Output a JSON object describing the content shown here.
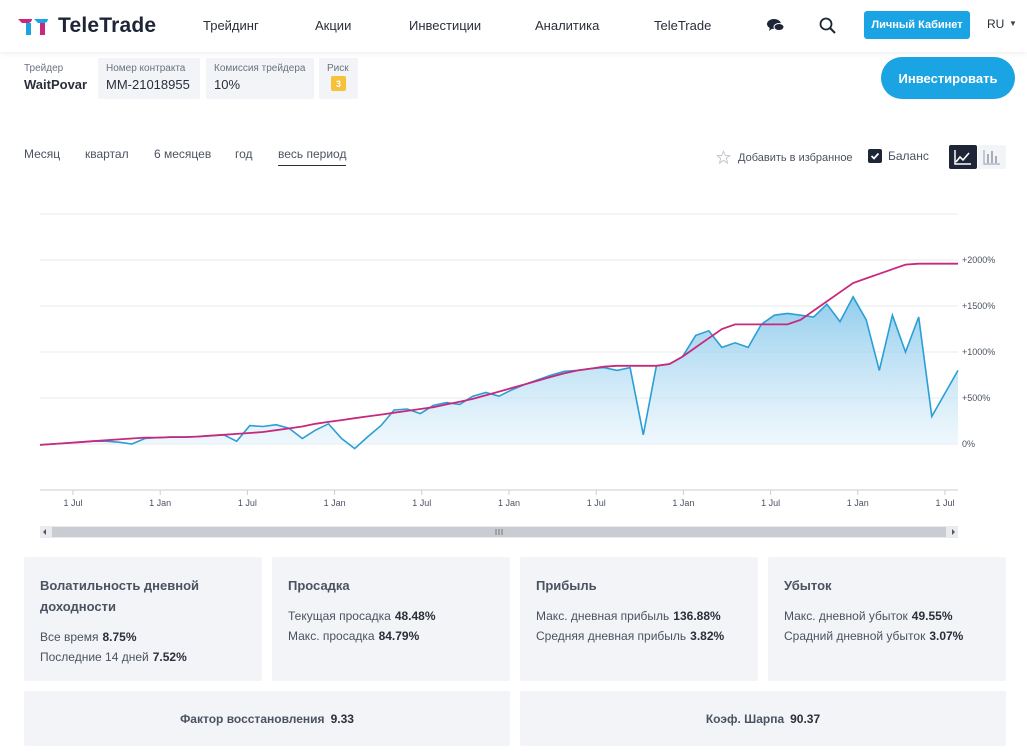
{
  "header": {
    "brand": "TeleTrade",
    "nav": [
      "Трейдинг",
      "Акции",
      "Инвестиции",
      "Аналитика",
      "TeleTrade"
    ],
    "cabinet_label": "Личный Кабинет",
    "lang": "RU",
    "icons": [
      "chat-icon",
      "search-icon",
      "caret-down-icon"
    ]
  },
  "info": {
    "trader_label": "Трейдер",
    "trader_value": "WaitPovar",
    "contract_label": "Номер контракта",
    "contract_value": "MM-21018955",
    "commission_label": "Комиссия трейдера",
    "commission_value": "10%",
    "risk_label": "Риск",
    "risk_value": "3",
    "invest_label": "Инвестировать"
  },
  "controls": {
    "periods": [
      "Месяц",
      "квартал",
      "6 месяцев",
      "год",
      "весь период"
    ],
    "active_period": "весь период",
    "favorite_label": "Добавить в избранное",
    "balance_label": "Баланс",
    "balance_checked": true
  },
  "colors": {
    "accent": "#1ba4e3",
    "balance_line": "#c8287d",
    "equity_line": "#2a9fd6",
    "dark": "#1d2537"
  },
  "chart_data": {
    "type": "area",
    "title": "",
    "xlabel": "",
    "ylabel": "",
    "y_unit": "%",
    "y_ticks": [
      "0%",
      "+500%",
      "+1000%",
      "+1500%",
      "+2000%"
    ],
    "y_tick_values": [
      0,
      500,
      1000,
      1500,
      2000
    ],
    "ylim": [
      -500,
      2500
    ],
    "x_ticks": [
      "1 Jul",
      "1 Jan",
      "1 Jul",
      "1 Jan",
      "1 Jul",
      "1 Jan",
      "1 Jul",
      "1 Jan",
      "1 Jul",
      "1 Jan",
      "1 Jul"
    ],
    "grid": true,
    "series": [
      {
        "name": "Баланс",
        "x": [
          0,
          1,
          2,
          3,
          4,
          5,
          6,
          7,
          8,
          9,
          10,
          11,
          12,
          13,
          14,
          15,
          16,
          17,
          18,
          19,
          20,
          21,
          22,
          23,
          24,
          25,
          26,
          27,
          28,
          29,
          30,
          31,
          32,
          33,
          34,
          35,
          36,
          37,
          38,
          39,
          40,
          41,
          42,
          43,
          44,
          45,
          46,
          47,
          48,
          49,
          50,
          51,
          52,
          53,
          54,
          55,
          56,
          57,
          58,
          59,
          60,
          61,
          62,
          63,
          64,
          65,
          66,
          67,
          68,
          69,
          70
        ],
        "values": [
          -10,
          0,
          10,
          20,
          30,
          40,
          50,
          60,
          70,
          70,
          75,
          75,
          80,
          90,
          100,
          110,
          120,
          130,
          150,
          170,
          190,
          220,
          240,
          260,
          280,
          300,
          320,
          340,
          360,
          380,
          400,
          430,
          460,
          490,
          530,
          570,
          610,
          650,
          690,
          730,
          770,
          800,
          820,
          840,
          850,
          850,
          850,
          850,
          870,
          950,
          1050,
          1150,
          1250,
          1300,
          1300,
          1300,
          1300,
          1300,
          1350,
          1450,
          1550,
          1650,
          1750,
          1800,
          1850,
          1900,
          1950,
          1960,
          1960,
          1960,
          1960
        ]
      },
      {
        "name": "",
        "x": [
          0,
          1,
          2,
          3,
          4,
          5,
          6,
          7,
          8,
          9,
          10,
          11,
          12,
          13,
          14,
          15,
          16,
          17,
          18,
          19,
          20,
          21,
          22,
          23,
          24,
          25,
          26,
          27,
          28,
          29,
          30,
          31,
          32,
          33,
          34,
          35,
          36,
          37,
          38,
          39,
          40,
          41,
          42,
          43,
          44,
          45,
          46,
          47,
          48,
          49,
          50,
          51,
          52,
          53,
          54,
          55,
          56,
          57,
          58,
          59,
          60,
          61,
          62,
          63,
          64,
          65,
          66,
          67,
          68,
          69,
          70
        ],
        "values": [
          -10,
          0,
          10,
          20,
          30,
          30,
          20,
          0,
          60,
          70,
          75,
          75,
          80,
          90,
          100,
          30,
          200,
          190,
          210,
          170,
          60,
          150,
          220,
          60,
          -50,
          80,
          200,
          370,
          380,
          330,
          420,
          450,
          430,
          520,
          560,
          520,
          590,
          650,
          700,
          750,
          790,
          800,
          820,
          830,
          800,
          830,
          100,
          850,
          870,
          950,
          1180,
          1230,
          1050,
          1100,
          1050,
          1300,
          1400,
          1420,
          1400,
          1380,
          1520,
          1330,
          1600,
          1350,
          800,
          1400,
          1000,
          1380,
          300,
          550,
          800
        ]
      }
    ]
  },
  "stats": {
    "vol": {
      "title": "Волатильность дневной доходности",
      "r1_label": "Все время",
      "r1_value": "8.75%",
      "r2_label": "Последние 14 дней",
      "r2_value": "7.52%"
    },
    "drawdown": {
      "title": "Просадка",
      "r1_label": "Текущая просадка",
      "r1_value": "48.48%",
      "r2_label": "Макс. просадка",
      "r2_value": "84.79%"
    },
    "profit": {
      "title": "Прибыль",
      "r1_label": "Макс. дневная прибыль",
      "r1_value": "136.88%",
      "r2_label": "Средняя дневная прибыль",
      "r2_value": "3.82%"
    },
    "loss": {
      "title": "Убыток",
      "r1_label": "Макс. дневной убыток",
      "r1_value": "49.55%",
      "r2_label": "Срадний дневной убыток",
      "r2_value": "3.07%"
    },
    "recovery_label": "Фактор восстановления",
    "recovery_value": "9.33",
    "sharpe_label": "Коэф. Шарпа",
    "sharpe_value": "90.37"
  }
}
